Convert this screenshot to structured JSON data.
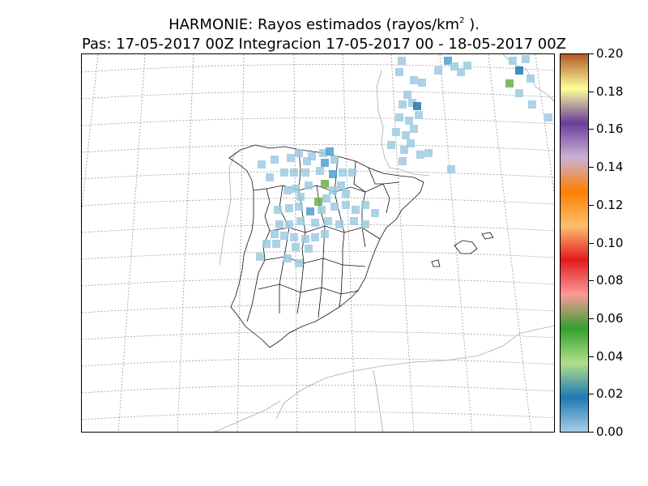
{
  "figure": {
    "title_line1_prefix": "HARMONIE: Rayos estimados  (rayos/km",
    "title_line1_exp": "2",
    "title_line1_suffix": " ).",
    "title_line2": "Pas: 17-05-2017 00Z Integracion 17-05-2017 00 - 18-05-2017 00Z"
  },
  "colorbar": {
    "labels": [
      "0.20",
      "0.18",
      "0.16",
      "0.14",
      "0.12",
      "0.10",
      "0.08",
      "0.06",
      "0.04",
      "0.02",
      "0.00"
    ],
    "min": 0.0,
    "max": 0.2,
    "colors": [
      "#a6cee3",
      "#1f78b4",
      "#b2df8a",
      "#33a02c",
      "#fb9a99",
      "#e31a1c",
      "#fdbf6f",
      "#ff7f00",
      "#cab2d6",
      "#6a3d9a",
      "#ffff99",
      "#b15928"
    ]
  },
  "map": {
    "region": "Iberian Peninsula",
    "graticule": "dotted",
    "marker_colors": {
      "light": "#9ecae1",
      "mid": "#4f9fd0",
      "dark": "#1f78b4",
      "green": "#6ab04c"
    }
  }
}
